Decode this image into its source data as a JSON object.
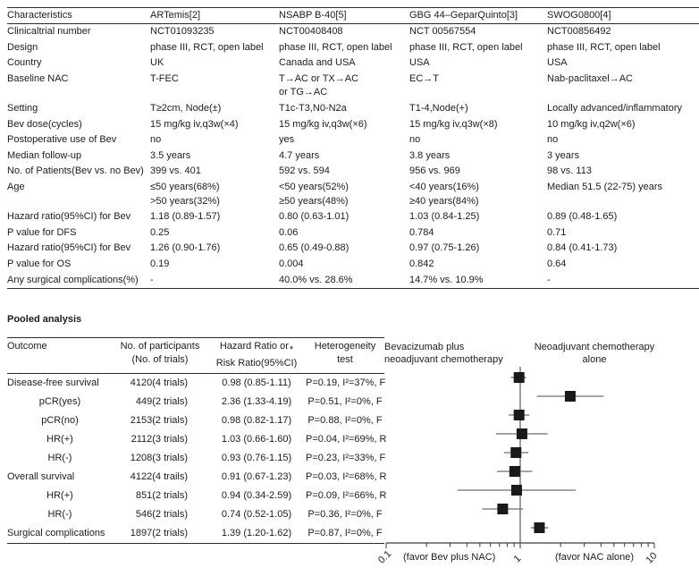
{
  "figure": {
    "background": "#ffffff",
    "text_color": "#1c1c1c",
    "rule_color": "#2b2b2b"
  },
  "trials_table": {
    "columns": [
      "Characteristics",
      "ARTemis[2]",
      "NSABP B-40[5]",
      "GBG 44–GeparQuinto[3]",
      "SWOG0800[4]"
    ],
    "rows": [
      [
        "Clinicaltrial number",
        "NCT01093235",
        "NCT00408408",
        "NCT 00567554",
        "NCT00856492"
      ],
      [
        "Design",
        "phase III, RCT, open label",
        "phase III, RCT, open label",
        "phase III, RCT, open label",
        "phase III, RCT, open label"
      ],
      [
        "Country",
        "UK",
        "Canada and USA",
        "USA",
        "USA"
      ],
      [
        "Baseline NAC",
        "T-FEC",
        "T→AC or TX→AC\nor TG→AC",
        "EC→T",
        "Nab-paclitaxel→AC"
      ],
      [
        "Setting",
        "T≥2cm, Node(±)",
        "T1c-T3,N0-N2a",
        "T1-4,Node(+)",
        "Locally advanced/inflammatory"
      ],
      [
        "Bev dose(cycles)",
        "15 mg/kg iv,q3w(×4)",
        "15 mg/kg iv,q3w(×6)",
        "15 mg/kg iv,q3w(×8)",
        "10 mg/kg iv,q2w(×6)"
      ],
      [
        "Postoperative use of Bev",
        "no",
        "yes",
        "no",
        "no"
      ],
      [
        "Median follow-up",
        "3.5 years",
        "4.7 years",
        "3.8 years",
        "3 years"
      ],
      [
        "No. of Patients(Bev vs. no Bev)",
        "399 vs. 401",
        "592 vs. 594",
        "956 vs. 969",
        "98 vs. 113"
      ],
      [
        "Age",
        "≤50 years(68%)\n>50 years(32%)",
        "<50 years(52%)\n≥50 years(48%)",
        "<40 years(16%)\n≥40 years(84%)",
        "Median 51.5 (22-75) years"
      ],
      [
        "Hazard ratio(95%CI) for Bev",
        "1.18 (0.89-1.57)",
        "0.80 (0.63-1.01)",
        "1.03 (0.84-1.25)",
        "0.89 (0.48-1.65)"
      ],
      [
        "P value for DFS",
        "0.25",
        "0.06",
        "0.784",
        "0.71"
      ],
      [
        "Hazard ratio(95%CI) for Bev",
        "1.26 (0.90-1.76)",
        "0.65 (0.49-0.88)",
        "0.97 (0.75-1.26)",
        "0.84 (0.41-1.73)"
      ],
      [
        "P value for OS",
        "0.19",
        "0.004",
        "0.842",
        "0.64"
      ],
      [
        "Any surgical complications(%)",
        "-",
        "40.0% vs. 28.6%",
        "14.7% vs. 10.9%",
        "-"
      ]
    ]
  },
  "pooled_section": {
    "heading": "Pooled analysis",
    "table": {
      "header": {
        "outcome": "Outcome",
        "participants_line1": "No. of participants",
        "participants_line2": "(No. of trials)",
        "ratio_line1": "Hazard Ratio or",
        "ratio_asterisk": "*",
        "ratio_line2": "Risk Ratio(95%CI)",
        "het_line1": "Heterogeneity",
        "het_line2": "test"
      },
      "rows": [
        {
          "outcome": "Disease-free survival",
          "indent": false,
          "participants": "4120(4 trials)",
          "ratio": "0.98 (0.85-1.11)",
          "heterogeneity": "P=0.19, I²=37%, F"
        },
        {
          "outcome": "pCR(yes)",
          "indent": true,
          "participants": "449(2 trials)",
          "ratio": "2.36 (1.33-4.19)",
          "heterogeneity": "P=0.51, I²=0%, F"
        },
        {
          "outcome": "pCR(no)",
          "indent": true,
          "participants": "2153(2 trials)",
          "ratio": "0.98 (0.82-1.17)",
          "heterogeneity": "P=0.88, I²=0%, F"
        },
        {
          "outcome": "HR(+)",
          "indent": true,
          "participants": "2112(3 trials)",
          "ratio": "1.03 (0.66-1.60)",
          "heterogeneity": "P=0.04, I²=69%, R"
        },
        {
          "outcome": "HR(-)",
          "indent": true,
          "participants": "1208(3 trials)",
          "ratio": "0.93 (0.76-1.15)",
          "heterogeneity": "P=0.23, I²=33%, F"
        },
        {
          "outcome": "Overall survival",
          "indent": false,
          "participants": "4122(4 trails)",
          "ratio": "0.91 (0.67-1.23)",
          "heterogeneity": "P=0.03, I²=68%, R"
        },
        {
          "outcome": "HR(+)",
          "indent": true,
          "participants": "851(2 trials)",
          "ratio": "0.94 (0.34-2.59)",
          "heterogeneity": "P=0.09, I²=66%, R"
        },
        {
          "outcome": "HR(-)",
          "indent": true,
          "participants": "546(2 trials)",
          "ratio": "0.74 (0.52-1.05)",
          "heterogeneity": "P=0.36, I²=0%, F"
        },
        {
          "outcome": "Surgical complications",
          "indent": false,
          "participants": "1897(2 trials)",
          "ratio": "1.39 (1.20-1.62)",
          "heterogeneity": "P=0.87, I²=0%, F"
        }
      ]
    }
  },
  "chart_data": {
    "type": "scatter",
    "subtype": "forest-plot",
    "x_scale": "log10",
    "xlim": [
      0.1,
      10
    ],
    "x_ticks": [
      0.1,
      0.2,
      0.3,
      0.4,
      0.5,
      0.6,
      0.7,
      0.8,
      0.9,
      1,
      2,
      3,
      4,
      5,
      6,
      7,
      8,
      9,
      10
    ],
    "x_major_ticks": [
      0.1,
      1,
      10
    ],
    "x_tick_labels": [
      "0.1",
      "1",
      "10"
    ],
    "reference_line": 1,
    "left_header": "Bevacizumab plus\nneoadjuvant chemotherapy",
    "right_header": "Neoadjuvant chemotherapy\nalone",
    "left_axis_note": "(favor Bev plus NAC)",
    "right_axis_note": "(favor NAC alone)",
    "marker_shape": "square",
    "marker_color": "#1a1a1a",
    "ci_line_color": "#6e6e6e",
    "axis_color": "#3a3a3a",
    "series": [
      {
        "label": "Disease-free survival",
        "estimate": 0.98,
        "ci_low": 0.85,
        "ci_high": 1.11
      },
      {
        "label": "pCR(yes)",
        "estimate": 2.36,
        "ci_low": 1.33,
        "ci_high": 4.19
      },
      {
        "label": "pCR(no)",
        "estimate": 0.98,
        "ci_low": 0.82,
        "ci_high": 1.17
      },
      {
        "label": "HR(+) DFS",
        "estimate": 1.03,
        "ci_low": 0.66,
        "ci_high": 1.6
      },
      {
        "label": "HR(-) DFS",
        "estimate": 0.93,
        "ci_low": 0.76,
        "ci_high": 1.15
      },
      {
        "label": "Overall survival",
        "estimate": 0.91,
        "ci_low": 0.67,
        "ci_high": 1.23
      },
      {
        "label": "HR(+) OS",
        "estimate": 0.94,
        "ci_low": 0.34,
        "ci_high": 2.59
      },
      {
        "label": "HR(-) OS",
        "estimate": 0.74,
        "ci_low": 0.52,
        "ci_high": 1.05
      },
      {
        "label": "Surgical complications",
        "estimate": 1.39,
        "ci_low": 1.2,
        "ci_high": 1.62
      }
    ]
  }
}
